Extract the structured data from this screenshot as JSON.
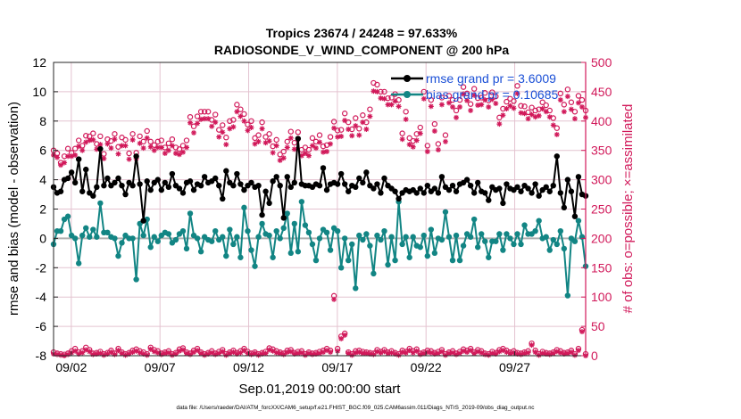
{
  "chart_data": {
    "type": "line",
    "title_line1": "Tropics 23674 / 24248 = 97.633%",
    "title_line2": "RADIOSONDE_V_WIND_COMPONENT @ 200 hPa",
    "xlabel": "Sep.01,2019 00:00:00 start",
    "ylabel_left": "rmse and bias (model - observation)",
    "ylabel_right": "# of obs: o=possible; ×=assimilated",
    "footer": "data file: /Users/raeder/DAI/ATM_forcXX/CAM6_setup/f.e21.FHIST_BGC.f09_025.CAM6assim.011/Diags_NTrS_2019-09/obs_diag_output.nc",
    "x_tick_labels": [
      "09/02",
      "09/07",
      "09/12",
      "09/17",
      "09/22",
      "09/27"
    ],
    "x_tick_days": [
      2,
      7,
      12,
      17,
      22,
      27
    ],
    "xlim": [
      1,
      31
    ],
    "ylim_left": [
      -8,
      12
    ],
    "ylim_right": [
      0,
      500
    ],
    "y_ticks_left": [
      -8,
      -6,
      -4,
      -2,
      0,
      2,
      4,
      6,
      8,
      10,
      12
    ],
    "y_ticks_right": [
      0,
      50,
      100,
      150,
      200,
      250,
      300,
      350,
      400,
      450,
      500
    ],
    "legend": [
      {
        "name": "rmse grand pr = 3.6009",
        "color": "#000000"
      },
      {
        "name": "bias grand pr = 0.10685",
        "color": "#128584"
      }
    ],
    "colors": {
      "rmse": "#000000",
      "bias": "#128584",
      "obs": "#d1195a",
      "zero_line": "#b0b0b0",
      "legend_text": "#1a4fd6"
    },
    "series": [
      {
        "name": "rmse",
        "axis": "left",
        "values": [
          3.5,
          3.1,
          3.2,
          4.0,
          4.1,
          4.5,
          3.8,
          5.4,
          3.2,
          4.7,
          3.1,
          2.9,
          3.5,
          6.1,
          3.6,
          4.1,
          3.6,
          3.8,
          4.1,
          3.6,
          3.0,
          3.8,
          3.6,
          5.6,
          3.7,
          1.2,
          3.9,
          3.3,
          3.8,
          4.0,
          3.3,
          3.8,
          3.5,
          4.4,
          3.6,
          3.4,
          3.1,
          3.8,
          3.9,
          3.3,
          3.7,
          3.6,
          4.2,
          3.8,
          3.9,
          4.1,
          3.6,
          2.7,
          4.6,
          3.8,
          3.6,
          4.4,
          3.7,
          3.3,
          3.6,
          3.8,
          3.5,
          3.6,
          1.6,
          3.2,
          2.4,
          3.9,
          4.2,
          3.6,
          1.4,
          4.2,
          3.5,
          3.8,
          6.8,
          3.7,
          3.6,
          3.6,
          3.5,
          3.7,
          3.6,
          4.8,
          3.3,
          3.7,
          3.8,
          3.7,
          4.4,
          3.7,
          3.2,
          3.6,
          3.5,
          4.1,
          3.8,
          4.5,
          3.6,
          3.4,
          3.7,
          3.1,
          4.1,
          3.6,
          3.4,
          3.2,
          2.7,
          3.1,
          3.3,
          3.2,
          3.3,
          3.1,
          3.4,
          3.1,
          3.6,
          3.2,
          3.4,
          3.1,
          4.2,
          3.5,
          3.3,
          3.6,
          3.2,
          3.7,
          3.8,
          4.0,
          3.6,
          3.1,
          3.8,
          3.2,
          3.1,
          2.6,
          3.5,
          3.3,
          3.4,
          2.4,
          3.7,
          3.4,
          3.3,
          3.5,
          3.2,
          3.6,
          3.4,
          3.1,
          3.7,
          2.9,
          3.3,
          3.5,
          3.2,
          3.6,
          5.6,
          3.1,
          2.1,
          4.0,
          3.2,
          1.5,
          4.2,
          3.0,
          2.9
        ]
      },
      {
        "name": "bias",
        "axis": "left",
        "values": [
          -0.4,
          0.5,
          0.5,
          1.3,
          1.5,
          0.2,
          0.0,
          -1.7,
          0.2,
          0.7,
          0.1,
          0.6,
          0.1,
          2.4,
          0.4,
          0.4,
          0.1,
          0.0,
          -1.2,
          -0.3,
          0.2,
          0.0,
          0.0,
          -2.8,
          1.0,
          0.2,
          1.3,
          -0.6,
          0.1,
          -0.2,
          0.2,
          0.4,
          0.3,
          -0.3,
          -0.1,
          0.3,
          0.5,
          -0.7,
          1.7,
          0.2,
          0.0,
          -0.9,
          0.1,
          -0.1,
          -0.2,
          0.5,
          -0.1,
          0.1,
          -1.2,
          0.6,
          -0.4,
          0.1,
          -1.3,
          2.1,
          0.5,
          -0.8,
          -1.9,
          0.1,
          1.0,
          0.3,
          0.2,
          -1.3,
          0.5,
          0.0,
          0.7,
          1.7,
          -1.0,
          1.0,
          -0.9,
          2.5,
          0.9,
          0.4,
          -0.4,
          -1.5,
          0.0,
          0.6,
          0.4,
          -0.8,
          0.7,
          0.5,
          -2.0,
          0.0,
          -1.5,
          -0.4,
          -3.4,
          0.2,
          -0.1,
          0.3,
          -0.5,
          -2.4,
          0.2,
          -0.1,
          0.5,
          -1.8,
          0.1,
          -1.5,
          2.5,
          -0.4,
          0.1,
          -1.3,
          0.1,
          -0.5,
          -0.6,
          0.2,
          -1.2,
          0.6,
          -1.0,
          0.0,
          -0.1,
          1.8,
          0.1,
          -1.5,
          0.2,
          -1.5,
          -0.5,
          0.3,
          0.1,
          1.3,
          -0.6,
          0.3,
          -0.2,
          -1.3,
          -0.2,
          -0.2,
          0.3,
          -0.8,
          0.3,
          0.0,
          -0.4,
          0.3,
          -0.4,
          0.9,
          0.3,
          0.3,
          0.5,
          1.2,
          0.0,
          0.1,
          -0.8,
          -0.1,
          -0.4,
          0.5,
          -0.7,
          -3.9,
          0.0,
          -0.2,
          1.2,
          0.1,
          -1.9
        ]
      },
      {
        "name": "obs_possible",
        "axis": "right",
        "values": [
          350,
          345,
          329,
          340,
          353,
          346,
          353,
          367,
          358,
          375,
          374,
          379,
          361,
          374,
          344,
          369,
          366,
          378,
          356,
          372,
          368,
          345,
          378,
          346,
          374,
          365,
          383,
          365,
          359,
          365,
          367,
          355,
          362,
          369,
          355,
          352,
          358,
          367,
          407,
          391,
          408,
          416,
          416,
          416,
          402,
          411,
          385,
          393,
          372,
          400,
          402,
          428,
          420,
          412,
          394,
          400,
          371,
          376,
          398,
          373,
          378,
          357,
          368,
          343,
          348,
          365,
          382,
          363,
          381,
          351,
          355,
          351,
          371,
          365,
          376,
          357,
          359,
          373,
          399,
          384,
          385,
          413,
          398,
          386,
          405,
          387,
          410,
          398,
          420,
          465,
          462,
          450,
          450,
          439,
          440,
          446,
          436,
          379,
          416,
          371,
          366,
          378,
          389,
          450,
          358,
          436,
          395,
          361,
          440,
          376,
          443,
          436,
          418,
          436,
          458,
          447,
          429,
          455,
          439,
          440,
          448,
          435,
          449,
          442,
          406,
          421,
          433,
          438,
          434,
          460,
          426,
          425,
          415,
          423,
          418,
          420,
          432,
          427,
          418,
          405,
          388,
          447,
          428,
          454,
          432,
          416,
          443,
          436,
          418
        ]
      },
      {
        "name": "obs_assimilated",
        "axis": "right",
        "values": [
          342,
          338,
          325,
          329,
          340,
          340,
          342,
          357,
          350,
          364,
          367,
          368,
          352,
          360,
          336,
          361,
          354,
          369,
          344,
          358,
          358,
          335,
          368,
          336,
          362,
          354,
          371,
          356,
          350,
          355,
          355,
          345,
          350,
          358,
          345,
          343,
          347,
          355,
          397,
          380,
          396,
          403,
          404,
          404,
          391,
          398,
          373,
          381,
          360,
          387,
          390,
          416,
          408,
          400,
          384,
          389,
          361,
          365,
          387,
          363,
          366,
          346,
          358,
          333,
          337,
          355,
          371,
          352,
          369,
          341,
          345,
          341,
          358,
          354,
          364,
          347,
          348,
          361,
          388,
          373,
          374,
          401,
          386,
          375,
          392,
          376,
          398,
          386,
          408,
          451,
          450,
          439,
          438,
          428,
          428,
          434,
          425,
          369,
          403,
          360,
          356,
          367,
          379,
          438,
          348,
          425,
          383,
          351,
          428,
          365,
          431,
          424,
          406,
          424,
          446,
          435,
          418,
          444,
          427,
          428,
          436,
          424,
          437,
          430,
          395,
          410,
          421,
          426,
          422,
          447,
          414,
          413,
          404,
          411,
          407,
          409,
          421,
          416,
          407,
          393,
          377,
          436,
          416,
          442,
          420,
          404,
          431,
          424,
          406
        ]
      },
      {
        "name": "obs_bottom_possible",
        "axis": "right",
        "values": [
          6,
          4,
          3,
          2,
          4,
          8,
          12,
          6,
          8,
          14,
          10,
          4,
          5,
          7,
          3,
          5,
          9,
          4,
          12,
          6,
          3,
          5,
          9,
          11,
          8,
          6,
          3,
          14,
          10,
          8,
          4,
          6,
          8,
          3,
          5,
          11,
          13,
          6,
          4,
          9,
          12,
          6,
          3,
          5,
          8,
          4,
          7,
          10,
          3,
          6,
          9,
          5,
          8,
          12,
          7,
          4,
          6,
          3,
          5,
          7,
          13,
          11,
          8,
          6,
          4,
          9,
          10,
          5,
          7,
          8,
          3,
          6,
          4,
          5,
          7,
          9,
          12,
          9,
          102,
          12,
          33,
          38,
          6,
          3,
          8,
          9,
          7,
          6,
          5,
          4,
          10,
          7,
          10,
          6,
          8,
          5,
          3,
          9,
          7,
          12,
          8,
          11,
          4,
          6,
          9,
          8,
          5,
          7,
          10,
          3,
          6,
          8,
          4,
          7,
          11,
          9,
          12,
          6,
          10,
          8,
          4,
          3,
          7,
          5,
          10,
          12,
          9,
          6,
          8,
          5,
          4,
          6,
          8,
          21,
          9,
          3,
          7,
          5,
          4,
          6,
          10,
          8,
          5,
          6,
          9,
          3,
          12,
          44,
          3
        ]
      },
      {
        "name": "obs_bottom_assimilated",
        "axis": "right",
        "values": [
          3,
          2,
          1,
          0,
          2,
          5,
          8,
          3,
          5,
          10,
          7,
          2,
          3,
          4,
          1,
          3,
          6,
          2,
          9,
          4,
          1,
          3,
          6,
          8,
          5,
          3,
          1,
          11,
          7,
          5,
          2,
          4,
          5,
          1,
          3,
          8,
          10,
          4,
          2,
          6,
          9,
          4,
          1,
          3,
          5,
          2,
          4,
          7,
          1,
          4,
          6,
          3,
          5,
          9,
          4,
          2,
          4,
          1,
          3,
          4,
          10,
          8,
          5,
          4,
          2,
          6,
          7,
          3,
          4,
          5,
          1,
          4,
          2,
          3,
          4,
          6,
          9,
          6,
          96,
          8,
          29,
          35,
          4,
          1,
          5,
          6,
          4,
          4,
          3,
          2,
          7,
          5,
          7,
          4,
          5,
          3,
          1,
          6,
          5,
          9,
          5,
          8,
          2,
          4,
          6,
          5,
          3,
          4,
          7,
          1,
          4,
          5,
          2,
          4,
          8,
          6,
          9,
          4,
          7,
          5,
          2,
          1,
          4,
          3,
          7,
          9,
          6,
          4,
          5,
          3,
          2,
          4,
          5,
          18,
          6,
          1,
          4,
          3,
          2,
          4,
          7,
          5,
          3,
          4,
          6,
          1,
          9,
          41,
          0
        ]
      }
    ]
  }
}
